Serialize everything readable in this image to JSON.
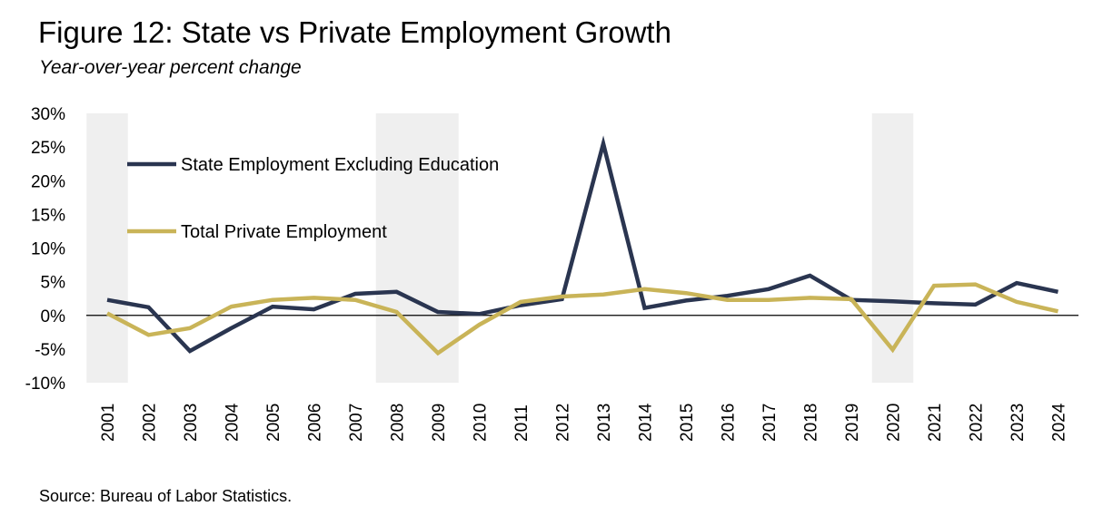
{
  "title": "Figure 12: State vs Private Employment Growth",
  "subtitle": "Year-over-year percent change",
  "source": "Source: Bureau of Labor Statistics.",
  "chart_data": {
    "type": "line",
    "title": "Figure 12: State vs Private Employment Growth",
    "subtitle": "Year-over-year percent change",
    "xlabel": "",
    "ylabel": "",
    "ylim": [
      -10,
      30
    ],
    "yticks": [
      -10,
      -5,
      0,
      5,
      10,
      15,
      20,
      25,
      30
    ],
    "ytick_labels": [
      "-10%",
      "-5%",
      "0%",
      "5%",
      "10%",
      "15%",
      "20%",
      "25%",
      "30%"
    ],
    "categories": [
      "2001",
      "2002",
      "2003",
      "2004",
      "2005",
      "2006",
      "2007",
      "2008",
      "2009",
      "2010",
      "2011",
      "2012",
      "2013",
      "2014",
      "2015",
      "2016",
      "2017",
      "2018",
      "2019",
      "2020",
      "2021",
      "2022",
      "2023",
      "2024"
    ],
    "series": [
      {
        "name": "State Employment Excluding Education",
        "color": "#2a3550",
        "values": [
          2.3,
          1.2,
          -5.3,
          -1.9,
          1.3,
          0.9,
          3.2,
          3.5,
          0.5,
          0.2,
          1.5,
          2.4,
          25.5,
          1.1,
          2.2,
          2.9,
          3.9,
          5.9,
          2.3,
          2.1,
          1.8,
          1.6,
          4.8,
          3.5
        ]
      },
      {
        "name": "Total Private Employment",
        "color": "#c9b458",
        "values": [
          0.3,
          -2.9,
          -1.9,
          1.3,
          2.3,
          2.6,
          2.3,
          0.5,
          -5.6,
          -1.4,
          2.0,
          2.8,
          3.1,
          3.9,
          3.3,
          2.3,
          2.3,
          2.6,
          2.4,
          -5.1,
          4.4,
          4.6,
          2.0,
          0.6
        ]
      }
    ],
    "shaded_periods": [
      {
        "from": "2001",
        "to": "2001"
      },
      {
        "from": "2008",
        "to": "2009"
      },
      {
        "from": "2020",
        "to": "2020"
      }
    ],
    "shade_color": "#efefef",
    "legend_position": "upper-left inside plot",
    "grid": false
  }
}
